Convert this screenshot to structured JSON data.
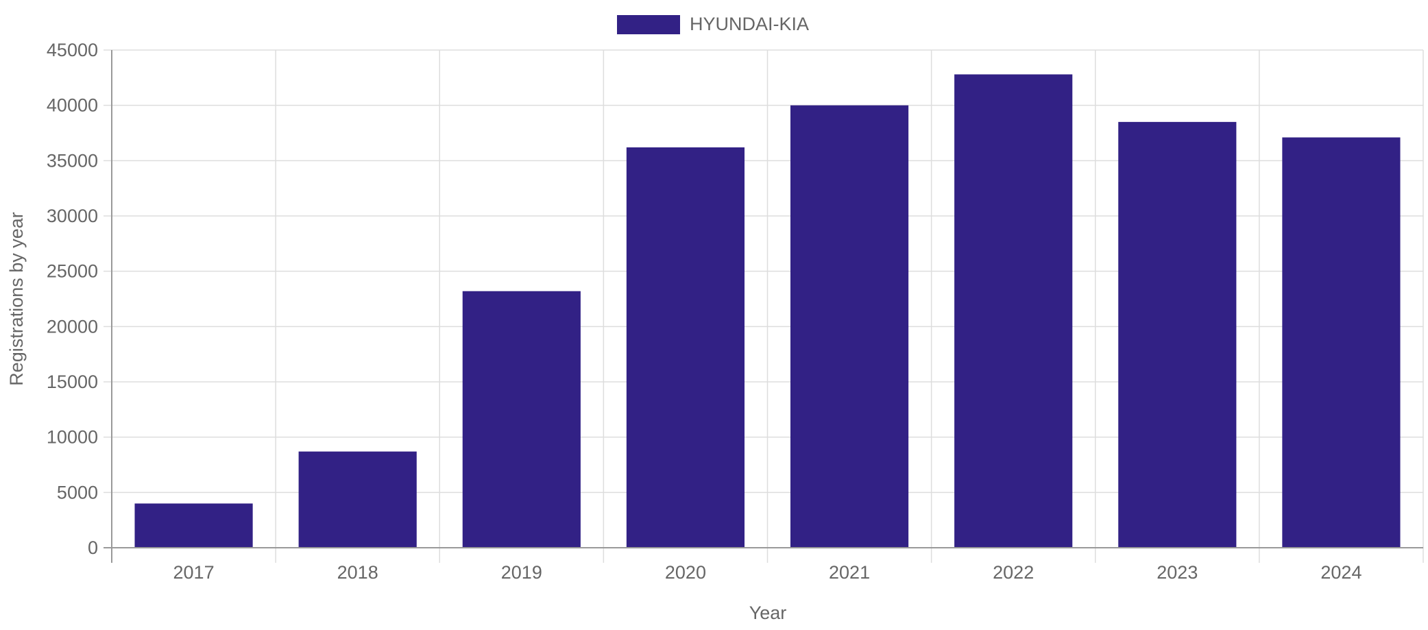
{
  "chart_data": {
    "type": "bar",
    "categories": [
      "2017",
      "2018",
      "2019",
      "2020",
      "2021",
      "2022",
      "2023",
      "2024"
    ],
    "series": [
      {
        "name": "HYUNDAI-KIA",
        "color": "#322185",
        "values": [
          4000,
          8700,
          23200,
          36200,
          40000,
          42800,
          38500,
          37100
        ]
      }
    ],
    "xlabel": "Year",
    "ylabel": "Registrations by year",
    "ylim": [
      0,
      45000
    ],
    "yticks": [
      "0",
      "5000",
      "10000",
      "15000",
      "20000",
      "25000",
      "30000",
      "35000",
      "40000",
      "45000"
    ],
    "grid": true,
    "legend_position": "top-center"
  }
}
